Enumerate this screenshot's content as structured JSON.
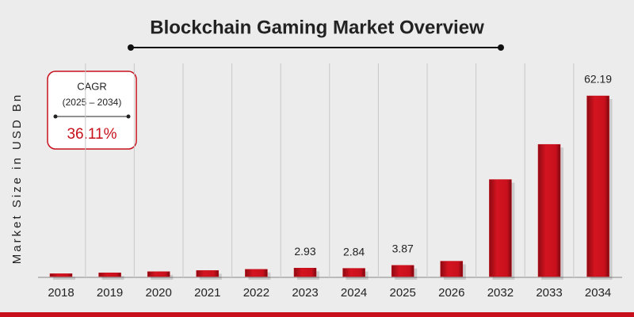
{
  "chart_data": {
    "type": "bar",
    "title": "Blockchain Gaming Market Overview",
    "y_label": "Market Size in USD Bn",
    "categories": [
      "2018",
      "2019",
      "2020",
      "2021",
      "2022",
      "2023",
      "2024",
      "2025",
      "2026",
      "2032",
      "2033",
      "2034"
    ],
    "values": [
      1.0,
      1.3,
      1.7,
      2.1,
      2.5,
      2.93,
      2.84,
      3.87,
      5.3,
      33.4,
      45.5,
      62.19
    ],
    "value_labels": [
      null,
      null,
      null,
      null,
      null,
      "2.93",
      "2.84",
      "3.87",
      null,
      null,
      null,
      "62.19"
    ],
    "color": "#c8101c",
    "cagr": {
      "title": "CAGR",
      "period": "(2025 – 2034)",
      "value": "36.11%"
    }
  }
}
